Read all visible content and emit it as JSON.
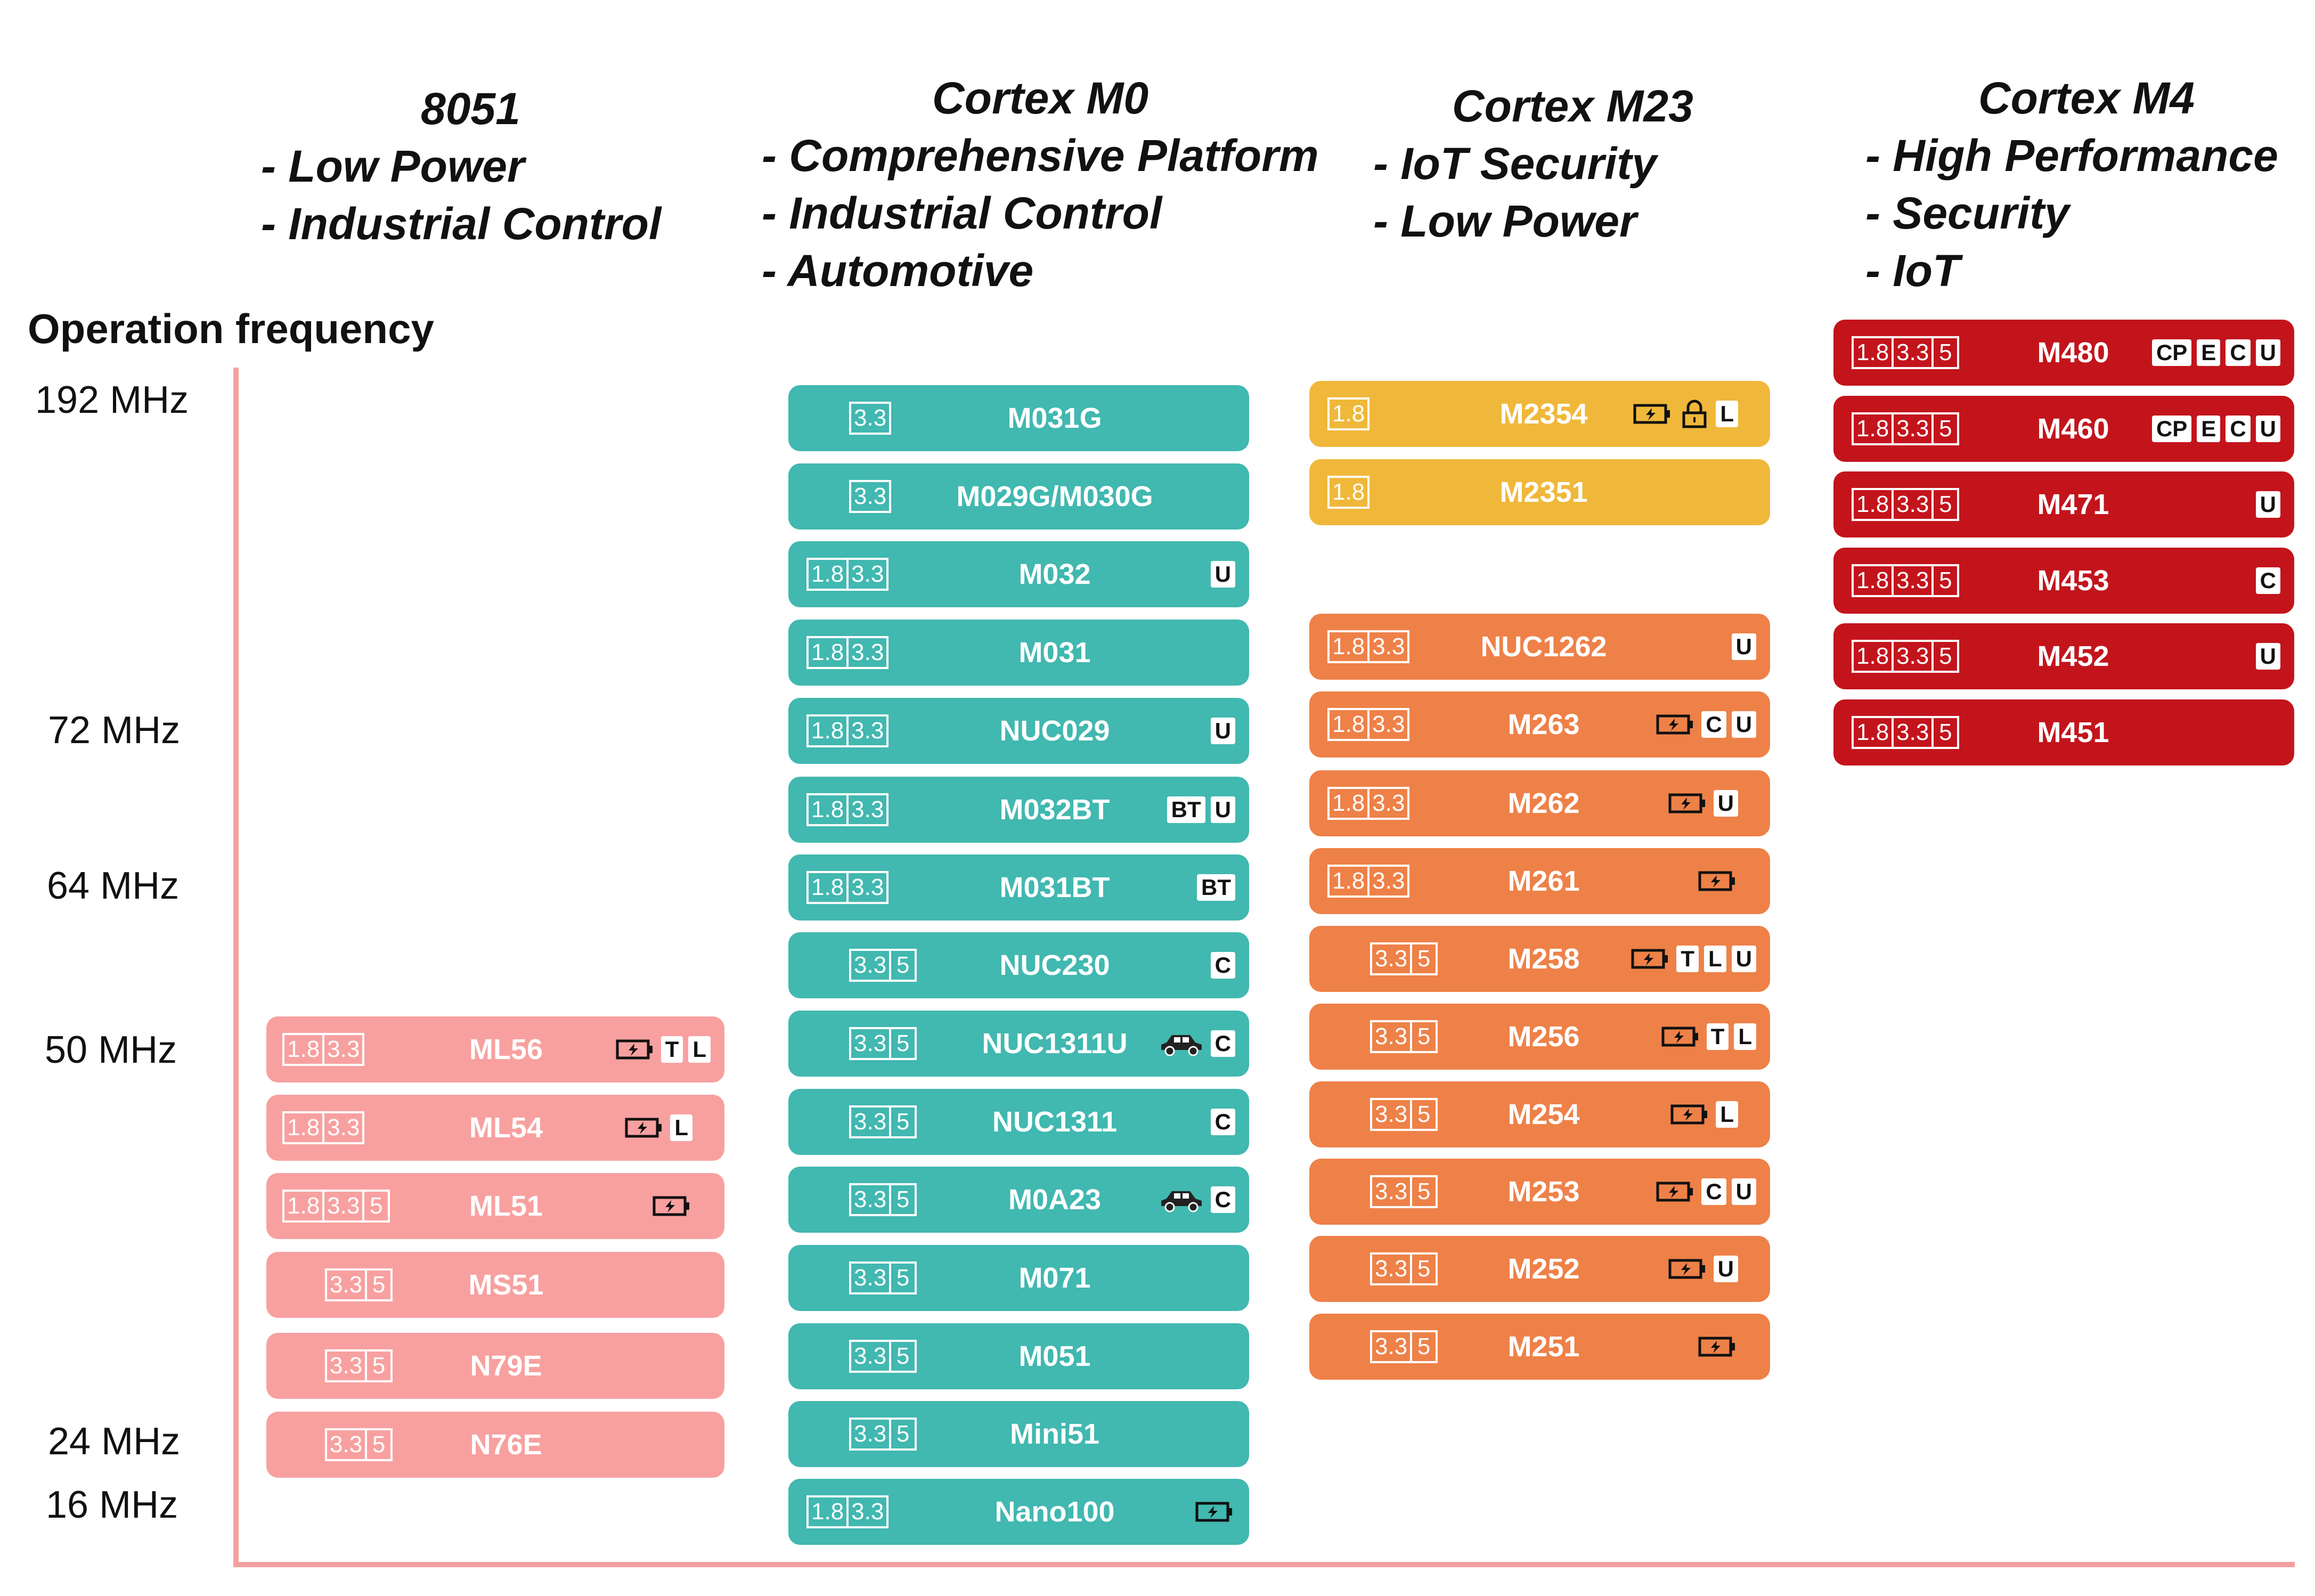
{
  "headers": [
    {
      "title": "8051",
      "lines": [
        "- Low Power",
        "- Industrial Control"
      ]
    },
    {
      "title": "Cortex M0",
      "lines": [
        "- Comprehensive Platform",
        "- Industrial Control",
        "- Automotive"
      ]
    },
    {
      "title": "Cortex M23",
      "lines": [
        "- IoT Security",
        "- Low Power"
      ]
    },
    {
      "title": "Cortex M4",
      "lines": [
        "- High Performance",
        "- Security",
        "- IoT"
      ]
    }
  ],
  "y_axis_label": "Operation frequency",
  "frequency_ticks": [
    "192 MHz",
    "72 MHz",
    "64 MHz",
    "50 MHz",
    "24 MHz",
    "16 MHz"
  ],
  "colors": {
    "8051": "#f8a0a0",
    "cortex_m0": "#41b8b0",
    "cortex_m23_security": "#f0b83a",
    "cortex_m23": "#ee8148",
    "cortex_m4": "#c3141c",
    "axis": "#f4a0a0"
  },
  "columns": [
    {
      "family": "8051",
      "chips": [
        {
          "name": "ML56",
          "voltages": [
            "1.8",
            "3.3"
          ],
          "icons": [
            "battery-icon"
          ],
          "badges": [
            "T",
            "L"
          ]
        },
        {
          "name": "ML54",
          "voltages": [
            "1.8",
            "3.3"
          ],
          "icons": [
            "battery-icon"
          ],
          "badges": [
            "L"
          ]
        },
        {
          "name": "ML51",
          "voltages": [
            "1.8",
            "3.3",
            "5"
          ],
          "icons": [
            "battery-icon"
          ],
          "badges": []
        },
        {
          "name": "MS51",
          "voltages": [
            "3.3",
            "5"
          ],
          "icons": [],
          "badges": []
        },
        {
          "name": "N79E",
          "voltages": [
            "3.3",
            "5"
          ],
          "icons": [],
          "badges": []
        },
        {
          "name": "N76E",
          "voltages": [
            "3.3",
            "5"
          ],
          "icons": [],
          "badges": []
        }
      ]
    },
    {
      "family": "Cortex M0",
      "chips": [
        {
          "name": "M031G",
          "voltages": [
            "3.3"
          ],
          "icons": [],
          "badges": []
        },
        {
          "name": "M029G/M030G",
          "voltages": [
            "3.3"
          ],
          "icons": [],
          "badges": []
        },
        {
          "name": "M032",
          "voltages": [
            "1.8",
            "3.3"
          ],
          "icons": [],
          "badges": [
            "U"
          ]
        },
        {
          "name": "M031",
          "voltages": [
            "1.8",
            "3.3"
          ],
          "icons": [],
          "badges": []
        },
        {
          "name": "NUC029",
          "voltages": [
            "1.8",
            "3.3"
          ],
          "icons": [],
          "badges": [
            "U"
          ]
        },
        {
          "name": "M032BT",
          "voltages": [
            "1.8",
            "3.3"
          ],
          "icons": [],
          "badges": [
            "BT",
            "U"
          ]
        },
        {
          "name": "M031BT",
          "voltages": [
            "1.8",
            "3.3"
          ],
          "icons": [],
          "badges": [
            "BT"
          ]
        },
        {
          "name": "NUC230",
          "voltages": [
            "3.3",
            "5"
          ],
          "icons": [],
          "badges": [
            "C"
          ]
        },
        {
          "name": "NUC1311U",
          "voltages": [
            "3.3",
            "5"
          ],
          "icons": [
            "car-icon"
          ],
          "badges": [
            "C"
          ]
        },
        {
          "name": "NUC1311",
          "voltages": [
            "3.3",
            "5"
          ],
          "icons": [],
          "badges": [
            "C"
          ]
        },
        {
          "name": "M0A23",
          "voltages": [
            "3.3",
            "5"
          ],
          "icons": [
            "car-icon"
          ],
          "badges": [
            "C"
          ]
        },
        {
          "name": "M071",
          "voltages": [
            "3.3",
            "5"
          ],
          "icons": [],
          "badges": []
        },
        {
          "name": "M051",
          "voltages": [
            "3.3",
            "5"
          ],
          "icons": [],
          "badges": []
        },
        {
          "name": "Mini51",
          "voltages": [
            "3.3",
            "5"
          ],
          "icons": [],
          "badges": []
        },
        {
          "name": "Nano100",
          "voltages": [
            "1.8",
            "3.3"
          ],
          "icons": [
            "battery-icon"
          ],
          "badges": []
        }
      ]
    },
    {
      "family": "Cortex M23",
      "chips": [
        {
          "name": "M2354",
          "voltages": [
            "1.8"
          ],
          "icons": [
            "battery-icon",
            "lock-icon"
          ],
          "badges": [
            "L"
          ]
        },
        {
          "name": "M2351",
          "voltages": [
            "1.8"
          ],
          "icons": [],
          "badges": []
        },
        {
          "name": "NUC1262",
          "voltages": [
            "1.8",
            "3.3"
          ],
          "icons": [],
          "badges": [
            "U"
          ]
        },
        {
          "name": "M263",
          "voltages": [
            "1.8",
            "3.3"
          ],
          "icons": [
            "battery-icon"
          ],
          "badges": [
            "C",
            "U"
          ]
        },
        {
          "name": "M262",
          "voltages": [
            "1.8",
            "3.3"
          ],
          "icons": [
            "battery-icon"
          ],
          "badges": [
            "U"
          ]
        },
        {
          "name": "M261",
          "voltages": [
            "1.8",
            "3.3"
          ],
          "icons": [
            "battery-icon"
          ],
          "badges": []
        },
        {
          "name": "M258",
          "voltages": [
            "3.3",
            "5"
          ],
          "icons": [
            "battery-icon"
          ],
          "badges": [
            "T",
            "L",
            "U"
          ]
        },
        {
          "name": "M256",
          "voltages": [
            "3.3",
            "5"
          ],
          "icons": [
            "battery-icon"
          ],
          "badges": [
            "T",
            "L"
          ]
        },
        {
          "name": "M254",
          "voltages": [
            "3.3",
            "5"
          ],
          "icons": [
            "battery-icon"
          ],
          "badges": [
            "L"
          ]
        },
        {
          "name": "M253",
          "voltages": [
            "3.3",
            "5"
          ],
          "icons": [
            "battery-icon"
          ],
          "badges": [
            "C",
            "U"
          ]
        },
        {
          "name": "M252",
          "voltages": [
            "3.3",
            "5"
          ],
          "icons": [
            "battery-icon"
          ],
          "badges": [
            "U"
          ]
        },
        {
          "name": "M251",
          "voltages": [
            "3.3",
            "5"
          ],
          "icons": [
            "battery-icon"
          ],
          "badges": []
        }
      ]
    },
    {
      "family": "Cortex M4",
      "chips": [
        {
          "name": "M480",
          "voltages": [
            "1.8",
            "3.3",
            "5"
          ],
          "icons": [],
          "badges": [
            "CP",
            "E",
            "C",
            "U"
          ]
        },
        {
          "name": "M460",
          "voltages": [
            "1.8",
            "3.3",
            "5"
          ],
          "icons": [],
          "badges": [
            "CP",
            "E",
            "C",
            "U"
          ]
        },
        {
          "name": "M471",
          "voltages": [
            "1.8",
            "3.3",
            "5"
          ],
          "icons": [],
          "badges": [
            "U"
          ]
        },
        {
          "name": "M453",
          "voltages": [
            "1.8",
            "3.3",
            "5"
          ],
          "icons": [],
          "badges": [
            "C"
          ]
        },
        {
          "name": "M452",
          "voltages": [
            "1.8",
            "3.3",
            "5"
          ],
          "icons": [],
          "badges": [
            "U"
          ]
        },
        {
          "name": "M451",
          "voltages": [
            "1.8",
            "3.3",
            "5"
          ],
          "icons": [],
          "badges": []
        }
      ]
    }
  ]
}
